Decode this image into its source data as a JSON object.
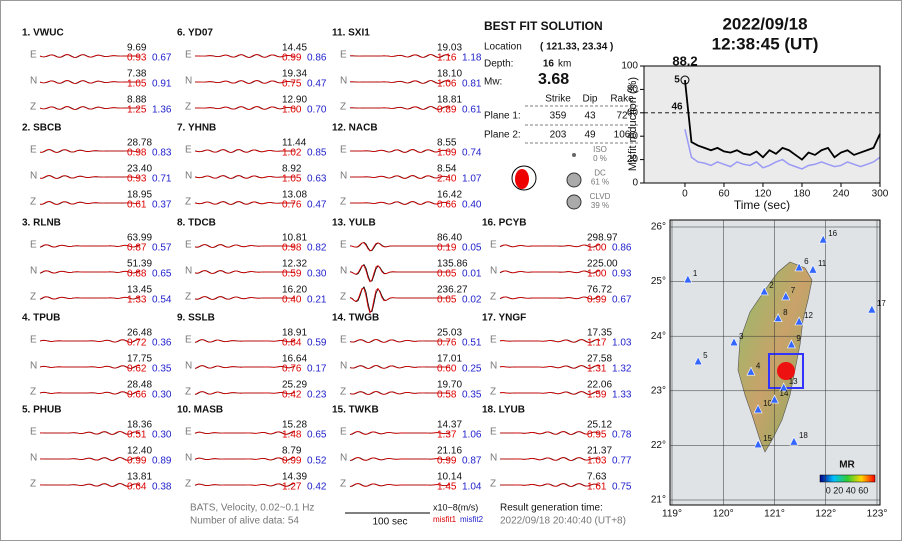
{
  "stations": [
    {
      "label": "1.  VWUC",
      "components": [
        {
          "comp": "E",
          "amp": "9.69",
          "misfit1": "0.93",
          "misfit2": "0.67"
        },
        {
          "comp": "N",
          "amp": "7.38",
          "misfit1": "1.05",
          "misfit2": "0.91"
        },
        {
          "comp": "Z",
          "amp": "8.88",
          "misfit1": "1.25",
          "misfit2": "1.36"
        }
      ]
    },
    {
      "label": "2.  SBCB",
      "components": [
        {
          "comp": "E",
          "amp": "28.78",
          "misfit1": "0.98",
          "misfit2": "0.83"
        },
        {
          "comp": "N",
          "amp": "23.40",
          "misfit1": "0.93",
          "misfit2": "0.71"
        },
        {
          "comp": "Z",
          "amp": "18.95",
          "misfit1": "0.61",
          "misfit2": "0.37"
        }
      ]
    },
    {
      "label": "3.  RLNB",
      "components": [
        {
          "comp": "E",
          "amp": "63.99",
          "misfit1": "0.87",
          "misfit2": "0.57"
        },
        {
          "comp": "N",
          "amp": "51.39",
          "misfit1": "0.88",
          "misfit2": "0.65"
        },
        {
          "comp": "Z",
          "amp": "13.45",
          "misfit1": "1.33",
          "misfit2": "0.54"
        }
      ]
    },
    {
      "label": "4.  TPUB",
      "components": [
        {
          "comp": "E",
          "amp": "26.48",
          "misfit1": "0.72",
          "misfit2": "0.36"
        },
        {
          "comp": "N",
          "amp": "17.75",
          "misfit1": "0.62",
          "misfit2": "0.35"
        },
        {
          "comp": "Z",
          "amp": "28.48",
          "misfit1": "0.66",
          "misfit2": "0.30"
        }
      ]
    },
    {
      "label": "5.  PHUB",
      "components": [
        {
          "comp": "E",
          "amp": "18.36",
          "misfit1": "0.51",
          "misfit2": "0.30"
        },
        {
          "comp": "N",
          "amp": "12.40",
          "misfit1": "0.99",
          "misfit2": "0.89"
        },
        {
          "comp": "Z",
          "amp": "13.81",
          "misfit1": "0.64",
          "misfit2": "0.38"
        }
      ]
    },
    {
      "label": "6.  YD07",
      "components": [
        {
          "comp": "E",
          "amp": "14.45",
          "misfit1": "0.99",
          "misfit2": "0.86"
        },
        {
          "comp": "N",
          "amp": "19.34",
          "misfit1": "0.75",
          "misfit2": "0.47"
        },
        {
          "comp": "Z",
          "amp": "12.90",
          "misfit1": "1.00",
          "misfit2": "0.70"
        }
      ]
    },
    {
      "label": "7.  YHNB",
      "components": [
        {
          "comp": "E",
          "amp": "11.44",
          "misfit1": "1.02",
          "misfit2": "0.85"
        },
        {
          "comp": "N",
          "amp": "8.92",
          "misfit1": "1.05",
          "misfit2": "0.63"
        },
        {
          "comp": "Z",
          "amp": "13.08",
          "misfit1": "0.76",
          "misfit2": "0.47"
        }
      ]
    },
    {
      "label": "8.  TDCB",
      "components": [
        {
          "comp": "E",
          "amp": "10.81",
          "misfit1": "0.98",
          "misfit2": "0.82"
        },
        {
          "comp": "N",
          "amp": "12.32",
          "misfit1": "0.59",
          "misfit2": "0.30"
        },
        {
          "comp": "Z",
          "amp": "16.20",
          "misfit1": "0.40",
          "misfit2": "0.21"
        }
      ]
    },
    {
      "label": "9.  SSLB",
      "components": [
        {
          "comp": "E",
          "amp": "18.91",
          "misfit1": "0.84",
          "misfit2": "0.59"
        },
        {
          "comp": "N",
          "amp": "16.64",
          "misfit1": "0.76",
          "misfit2": "0.17"
        },
        {
          "comp": "Z",
          "amp": "25.29",
          "misfit1": "0.42",
          "misfit2": "0.23"
        }
      ]
    },
    {
      "label": "10. MASB",
      "components": [
        {
          "comp": "E",
          "amp": "15.28",
          "misfit1": "1.48",
          "misfit2": "0.65"
        },
        {
          "comp": "N",
          "amp": "8.79",
          "misfit1": "0.99",
          "misfit2": "0.52"
        },
        {
          "comp": "Z",
          "amp": "14.39",
          "misfit1": "1.27",
          "misfit2": "0.42"
        }
      ]
    },
    {
      "label": "11. SXI1",
      "components": [
        {
          "comp": "E",
          "amp": "19.03",
          "misfit1": "1.16",
          "misfit2": "1.18"
        },
        {
          "comp": "N",
          "amp": "18.10",
          "misfit1": "1.06",
          "misfit2": "0.81"
        },
        {
          "comp": "Z",
          "amp": "18.81",
          "misfit1": "0.89",
          "misfit2": "0.61"
        }
      ]
    },
    {
      "label": "12. NACB",
      "components": [
        {
          "comp": "E",
          "amp": "8.55",
          "misfit1": "1.09",
          "misfit2": "0.74"
        },
        {
          "comp": "N",
          "amp": "8.54",
          "misfit1": "2.40",
          "misfit2": "1.07"
        },
        {
          "comp": "Z",
          "amp": "16.42",
          "misfit1": "0.66",
          "misfit2": "0.40"
        }
      ]
    },
    {
      "label": "13. YULB",
      "components": [
        {
          "comp": "E",
          "amp": "86.40",
          "misfit1": "0.19",
          "misfit2": "0.05"
        },
        {
          "comp": "N",
          "amp": "135.86",
          "misfit1": "0.05",
          "misfit2": "0.01"
        },
        {
          "comp": "Z",
          "amp": "236.27",
          "misfit1": "0.05",
          "misfit2": "0.02"
        }
      ]
    },
    {
      "label": "14. TWGB",
      "components": [
        {
          "comp": "E",
          "amp": "25.03",
          "misfit1": "0.76",
          "misfit2": "0.51"
        },
        {
          "comp": "N",
          "amp": "17.01",
          "misfit1": "0.60",
          "misfit2": "0.25"
        },
        {
          "comp": "Z",
          "amp": "19.70",
          "misfit1": "0.58",
          "misfit2": "0.35"
        }
      ]
    },
    {
      "label": "15. TWKB",
      "components": [
        {
          "comp": "E",
          "amp": "14.37",
          "misfit1": "1.37",
          "misfit2": "1.06"
        },
        {
          "comp": "N",
          "amp": "21.16",
          "misfit1": "0.99",
          "misfit2": "0.87"
        },
        {
          "comp": "Z",
          "amp": "10.14",
          "misfit1": "1.45",
          "misfit2": "1.04"
        }
      ]
    },
    {
      "label": "16. PCYB",
      "components": [
        {
          "comp": "E",
          "amp": "298.97",
          "misfit1": "1.00",
          "misfit2": "0.86"
        },
        {
          "comp": "N",
          "amp": "225.00",
          "misfit1": "1.00",
          "misfit2": "0.93"
        },
        {
          "comp": "Z",
          "amp": "76.72",
          "misfit1": "0.99",
          "misfit2": "0.67"
        }
      ]
    },
    {
      "label": "17. YNGF",
      "components": [
        {
          "comp": "E",
          "amp": "17.35",
          "misfit1": "1.17",
          "misfit2": "1.03"
        },
        {
          "comp": "N",
          "amp": "27.58",
          "misfit1": "1.31",
          "misfit2": "1.32"
        },
        {
          "comp": "Z",
          "amp": "22.06",
          "misfit1": "1.59",
          "misfit2": "1.33"
        }
      ]
    },
    {
      "label": "18. LYUB",
      "components": [
        {
          "comp": "E",
          "amp": "25.12",
          "misfit1": "0.95",
          "misfit2": "0.78"
        },
        {
          "comp": "N",
          "amp": "21.37",
          "misfit1": "1.03",
          "misfit2": "0.77"
        },
        {
          "comp": "Z",
          "amp": "7.63",
          "misfit1": "1.61",
          "misfit2": "0.75"
        }
      ]
    }
  ],
  "solution": {
    "title": "BEST FIT SOLUTION",
    "location_label": "Location",
    "location": "( 121.33, 23.34 )",
    "depth_label": "Depth:",
    "depth": "16",
    "depth_unit": "km",
    "mw_label": "Mw:",
    "mw": "3.68",
    "headers": [
      "Strike",
      "Dip",
      "Rake"
    ],
    "planes": [
      {
        "label": "Plane 1:",
        "values": [
          "359",
          "43",
          "72"
        ]
      },
      {
        "label": "Plane 2:",
        "values": [
          "203",
          "49",
          "106"
        ]
      }
    ],
    "components": [
      {
        "label": "ISO",
        "value": "0 %"
      },
      {
        "label": "DC",
        "value": "61 %"
      },
      {
        "label": "CLVD",
        "value": "39 %"
      }
    ]
  },
  "date": "2022/09/18",
  "time": "12:38:45  (UT)",
  "chart_data": {
    "type": "line",
    "ylabel": "Misfit reduction (%)",
    "xlabel": "Time (sec)",
    "x": [
      0,
      10,
      20,
      30,
      40,
      50,
      60,
      70,
      80,
      90,
      100,
      110,
      120,
      130,
      140,
      150,
      160,
      170,
      180,
      190,
      200,
      210,
      220,
      230,
      240,
      250,
      260,
      270,
      280,
      290,
      300
    ],
    "series": [
      {
        "color": "#000000",
        "values": [
          88,
          35,
          32,
          30,
          28,
          30,
          27,
          26,
          28,
          25,
          24,
          27,
          22,
          28,
          25,
          30,
          28,
          24,
          20,
          26,
          24,
          28,
          30,
          22,
          26,
          28,
          24,
          26,
          28,
          30,
          42
        ]
      },
      {
        "color": "#9a9af5",
        "values": [
          46,
          22,
          18,
          17,
          15,
          18,
          16,
          14,
          18,
          16,
          15,
          18,
          13,
          15,
          18,
          20,
          16,
          14,
          12,
          15,
          16,
          18,
          16,
          14,
          15,
          18,
          16,
          14,
          16,
          18,
          22
        ]
      }
    ],
    "xlim": [
      -63,
      300
    ],
    "ylim": [
      0,
      100
    ],
    "xticks": [
      0,
      60,
      120,
      180,
      240,
      300
    ],
    "yticks": [
      0,
      20,
      40,
      60,
      80,
      100
    ],
    "reference_y": 60,
    "annotations": [
      {
        "text": "88.2",
        "color": "#dd0000"
      },
      {
        "text": "5",
        "color": "#888888"
      },
      {
        "text": "46",
        "color": "#9a9af5"
      }
    ]
  },
  "map": {
    "xlim": [
      119,
      123
    ],
    "ylim": [
      21,
      26
    ],
    "xticks": [
      {
        "value": 119,
        "label": "119°"
      },
      {
        "value": 120,
        "label": "120°"
      },
      {
        "value": 121,
        "label": "121°"
      },
      {
        "value": 122,
        "label": "122°"
      },
      {
        "value": 123,
        "label": "123°"
      }
    ],
    "yticks": [
      {
        "value": 21,
        "label": "21°"
      },
      {
        "value": 22,
        "label": "22°"
      },
      {
        "value": 23,
        "label": "23°"
      },
      {
        "value": 24,
        "label": "24°"
      },
      {
        "value": 25,
        "label": "25°"
      },
      {
        "value": 26,
        "label": "26°"
      }
    ],
    "stations": [
      {
        "label": "1",
        "lon": 119.31,
        "lat": 25.03
      },
      {
        "label": "2",
        "lon": 120.8,
        "lat": 24.81
      },
      {
        "label": "3",
        "lon": 120.21,
        "lat": 23.88
      },
      {
        "label": "4",
        "lon": 120.54,
        "lat": 23.34
      },
      {
        "label": "5",
        "lon": 119.51,
        "lat": 23.53
      },
      {
        "label": "6",
        "lon": 121.48,
        "lat": 25.25
      },
      {
        "label": "7",
        "lon": 121.22,
        "lat": 24.72
      },
      {
        "label": "8",
        "lon": 121.07,
        "lat": 24.32
      },
      {
        "label": "9",
        "lon": 121.33,
        "lat": 23.84
      },
      {
        "label": "10",
        "lon": 120.68,
        "lat": 22.65
      },
      {
        "label": "11",
        "lon": 121.75,
        "lat": 25.21
      },
      {
        "label": "12",
        "lon": 121.48,
        "lat": 24.26
      },
      {
        "label": "13",
        "lon": 121.18,
        "lat": 23.05
      },
      {
        "label": "14",
        "lon": 121.0,
        "lat": 22.83
      },
      {
        "label": "15",
        "lon": 120.68,
        "lat": 22.01
      },
      {
        "label": "16",
        "lon": 121.95,
        "lat": 25.76
      },
      {
        "label": "17",
        "lon": 122.9,
        "lat": 24.48
      },
      {
        "label": "18",
        "lon": 121.38,
        "lat": 22.06
      }
    ],
    "colorbar_title": "MR",
    "colorbar_labels": "0 20 40 60"
  },
  "footer": {
    "source": "BATS, Velocity, 0.02~0.1 Hz",
    "alive": "Number of alive data: 54",
    "scale": "100 sec",
    "units": "x10−8(m/s)",
    "misfit1": "misfit1",
    "misfit2": "misfit2",
    "generated_label": "Result generation time:",
    "generated": "2022/09/18 20:40:40 (UT+8)"
  }
}
